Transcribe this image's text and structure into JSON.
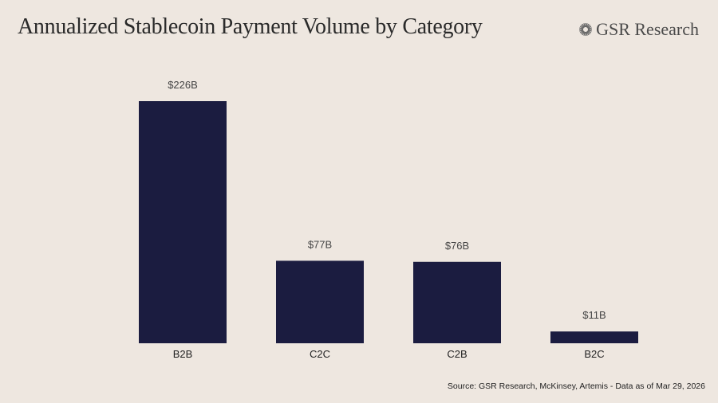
{
  "title": "Annualized Stablecoin Payment Volume by Category",
  "logo_text": "GSR Research",
  "source": "Source: GSR Research, McKinsey, Artemis - Data as of Mar 29, 2026",
  "chart_data": {
    "type": "bar",
    "title": "Annualized Stablecoin Payment Volume by Category",
    "categories": [
      "B2B",
      "C2C",
      "C2B",
      "B2C"
    ],
    "values": [
      226,
      77,
      76,
      11
    ],
    "data_labels": [
      "$226B",
      "$77B",
      "$76B",
      "$11B"
    ],
    "unit": "USD billions",
    "xlabel": "",
    "ylabel": "",
    "ylim": [
      0,
      226
    ],
    "grid": false,
    "bar_color": "#1b1c40",
    "background": "#eee7e0"
  }
}
